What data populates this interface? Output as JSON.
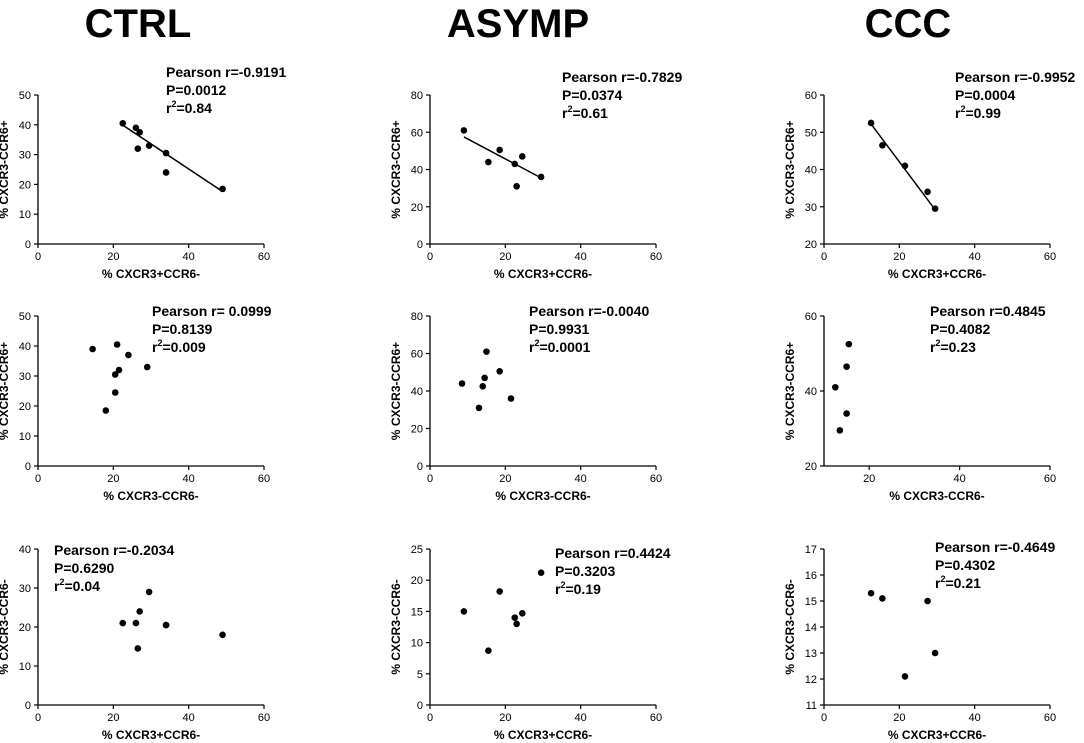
{
  "columns": [
    "CTRL",
    "ASYMP",
    "CCC"
  ],
  "chart_data": [
    {
      "type": "scatter",
      "panel": "CTRL-1",
      "xlabel": "% CXCR3+CCR6-",
      "ylabel": "% CXCR3-CCR6+",
      "xlim": [
        0,
        60
      ],
      "ylim": [
        0,
        50
      ],
      "xticks": [
        0,
        20,
        40,
        60
      ],
      "yticks": [
        0,
        10,
        20,
        30,
        40,
        50
      ],
      "points": [
        [
          22.5,
          40.5
        ],
        [
          26,
          39
        ],
        [
          27,
          37.5
        ],
        [
          26.5,
          32
        ],
        [
          29.5,
          33
        ],
        [
          34,
          30.5
        ],
        [
          34,
          24
        ],
        [
          49,
          18.5
        ]
      ],
      "fit": [
        [
          22.5,
          39.9
        ],
        [
          49,
          17.6
        ]
      ],
      "stats": [
        "Pearson r=-0.9191",
        "P=0.0012",
        "r",
        "2",
        "=0.84"
      ]
    },
    {
      "type": "scatter",
      "panel": "ASYMP-1",
      "xlabel": "% CXCR3+CCR6-",
      "ylabel": "% CXCR3-CCR6+",
      "xlim": [
        0,
        60
      ],
      "ylim": [
        0,
        80
      ],
      "xticks": [
        0,
        20,
        40,
        60
      ],
      "yticks": [
        0,
        20,
        40,
        60,
        80
      ],
      "points": [
        [
          9,
          61
        ],
        [
          15.5,
          44
        ],
        [
          18.5,
          50.5
        ],
        [
          22.5,
          43
        ],
        [
          24.5,
          47
        ],
        [
          23,
          31
        ],
        [
          29.5,
          36
        ]
      ],
      "fit": [
        [
          9,
          57.5
        ],
        [
          29.5,
          35.5
        ]
      ],
      "stats": [
        "Pearson r=-0.7829",
        "P=0.0374",
        "r",
        "2",
        "=0.61"
      ]
    },
    {
      "type": "scatter",
      "panel": "CCC-1",
      "xlabel": "% CXCR3+CCR6-",
      "ylabel": "% CXCR3-CCR6+",
      "xlim": [
        0,
        60
      ],
      "ylim": [
        20,
        60
      ],
      "xticks": [
        0,
        20,
        40,
        60
      ],
      "yticks": [
        20,
        30,
        40,
        50,
        60
      ],
      "points": [
        [
          12.5,
          52.5
        ],
        [
          15.5,
          46.5
        ],
        [
          21.5,
          41
        ],
        [
          27.5,
          34
        ],
        [
          29.5,
          29.5
        ]
      ],
      "fit": [
        [
          12.5,
          52.2
        ],
        [
          29.5,
          29.2
        ]
      ],
      "stats": [
        "Pearson r=-0.9952",
        "P=0.0004",
        "r",
        "2",
        "=0.99"
      ]
    },
    {
      "type": "scatter",
      "panel": "CTRL-2",
      "xlabel": "% CXCR3-CCR6-",
      "ylabel": "% CXCR3-CCR6+",
      "xlim": [
        0,
        60
      ],
      "ylim": [
        0,
        50
      ],
      "xticks": [
        0,
        20,
        40,
        60
      ],
      "yticks": [
        0,
        10,
        20,
        30,
        40,
        50
      ],
      "points": [
        [
          14.5,
          39
        ],
        [
          21,
          40.5
        ],
        [
          24,
          37
        ],
        [
          20.5,
          30.5
        ],
        [
          21.5,
          32
        ],
        [
          20.5,
          24.5
        ],
        [
          29,
          33
        ],
        [
          18,
          18.5
        ]
      ],
      "stats": [
        "Pearson r= 0.0999",
        "P=0.8139",
        "r",
        "2",
        "=0.009"
      ]
    },
    {
      "type": "scatter",
      "panel": "ASYMP-2",
      "xlabel": "% CXCR3-CCR6-",
      "ylabel": "% CXCR3-CCR6+",
      "xlim": [
        0,
        60
      ],
      "ylim": [
        0,
        80
      ],
      "xticks": [
        0,
        20,
        40,
        60
      ],
      "yticks": [
        0,
        20,
        40,
        60,
        80
      ],
      "points": [
        [
          8.5,
          44
        ],
        [
          15,
          61
        ],
        [
          14.5,
          47
        ],
        [
          14,
          42.5
        ],
        [
          18.5,
          50.5
        ],
        [
          13,
          31
        ],
        [
          21.5,
          36
        ]
      ],
      "stats": [
        "Pearson r=-0.0040",
        "P=0.9931",
        "r",
        "2",
        "=0.0001"
      ]
    },
    {
      "type": "scatter",
      "panel": "CCC-2",
      "xlabel": "% CXCR3-CCR6-",
      "ylabel": "% CXCR3-CCR6+",
      "xlim": [
        10,
        60
      ],
      "ylim": [
        20,
        60
      ],
      "xticks": [
        20,
        40,
        60
      ],
      "yticks": [
        20,
        40,
        60
      ],
      "points": [
        [
          15.5,
          52.5
        ],
        [
          15,
          46.5
        ],
        [
          12.5,
          41
        ],
        [
          15,
          34
        ],
        [
          13.5,
          29.5
        ]
      ],
      "stats": [
        "Pearson r=0.4845",
        "P=0.4082",
        "r",
        "2",
        "=0.23"
      ]
    },
    {
      "type": "scatter",
      "panel": "CTRL-3",
      "xlabel": "% CXCR3+CCR6-",
      "ylabel": "% CXCR3-CCR6-",
      "xlim": [
        0,
        60
      ],
      "ylim": [
        0,
        40
      ],
      "xticks": [
        0,
        20,
        40,
        60
      ],
      "yticks": [
        0,
        10,
        20,
        30,
        40
      ],
      "points": [
        [
          22.5,
          21
        ],
        [
          26,
          21
        ],
        [
          27,
          24
        ],
        [
          29.5,
          29
        ],
        [
          26.5,
          14.5
        ],
        [
          34,
          20.5
        ],
        [
          34,
          20.5
        ],
        [
          49,
          18
        ]
      ],
      "stats": [
        "Pearson r=-0.2034",
        "P=0.6290",
        "r",
        "2",
        "=0.04"
      ]
    },
    {
      "type": "scatter",
      "panel": "ASYMP-3",
      "xlabel": "% CXCR3+CCR6-",
      "ylabel": "% CXCR3-CCR6-",
      "xlim": [
        0,
        60
      ],
      "ylim": [
        0,
        25
      ],
      "xticks": [
        0,
        20,
        40,
        60
      ],
      "yticks": [
        0,
        5,
        10,
        15,
        20,
        25
      ],
      "points": [
        [
          9,
          15
        ],
        [
          15.5,
          8.7
        ],
        [
          18.5,
          18.2
        ],
        [
          22.5,
          14
        ],
        [
          23,
          13
        ],
        [
          24.5,
          14.7
        ],
        [
          29.5,
          21.2
        ]
      ],
      "stats": [
        "Pearson r=0.4424",
        "P=0.3203",
        "r",
        "2",
        "=0.19"
      ]
    },
    {
      "type": "scatter",
      "panel": "CCC-3",
      "xlabel": "% CXCR3+CCR6-",
      "ylabel": "% CXCR3-CCR6-",
      "xlim": [
        0,
        60
      ],
      "ylim": [
        11,
        17
      ],
      "xticks": [
        0,
        20,
        40,
        60
      ],
      "yticks": [
        11,
        12,
        13,
        14,
        15,
        16,
        17
      ],
      "points": [
        [
          12.5,
          15.3
        ],
        [
          15.5,
          15.1
        ],
        [
          21.5,
          12.1
        ],
        [
          27.5,
          15
        ],
        [
          29.5,
          13
        ]
      ],
      "stats": [
        "Pearson r=-0.4649",
        "P=0.4302",
        "r",
        "2",
        "=0.21"
      ]
    }
  ]
}
